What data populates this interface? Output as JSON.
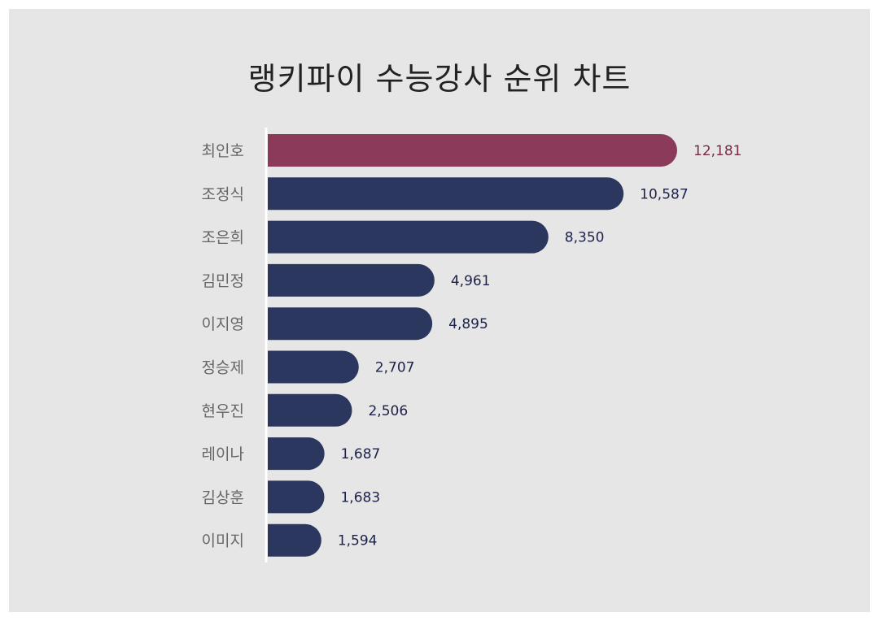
{
  "chart_data": {
    "type": "bar",
    "orientation": "horizontal",
    "title": "랭키파이 수능강사 순위 차트",
    "categories": [
      "최인호",
      "조정식",
      "조은희",
      "김민정",
      "이지영",
      "정승제",
      "현우진",
      "레이나",
      "김상훈",
      "이미지"
    ],
    "values": [
      12181,
      10587,
      8350,
      4961,
      4895,
      2707,
      2506,
      1687,
      1683,
      1594
    ],
    "value_labels": [
      "12,181",
      "10,587",
      "8,350",
      "4,961",
      "4,895",
      "2,707",
      "2,506",
      "1,687",
      "1,683",
      "1,594"
    ],
    "xlabel": "",
    "ylabel": "",
    "xlim": [
      0,
      12181
    ],
    "grid": false,
    "legend": "none",
    "colors": {
      "highlight": "#8b3a59",
      "default": "#2b375e",
      "highlight_label": "#7a2a48",
      "default_label": "#1b2148",
      "background": "#e6e6e6",
      "axis": "#ffffff"
    }
  }
}
